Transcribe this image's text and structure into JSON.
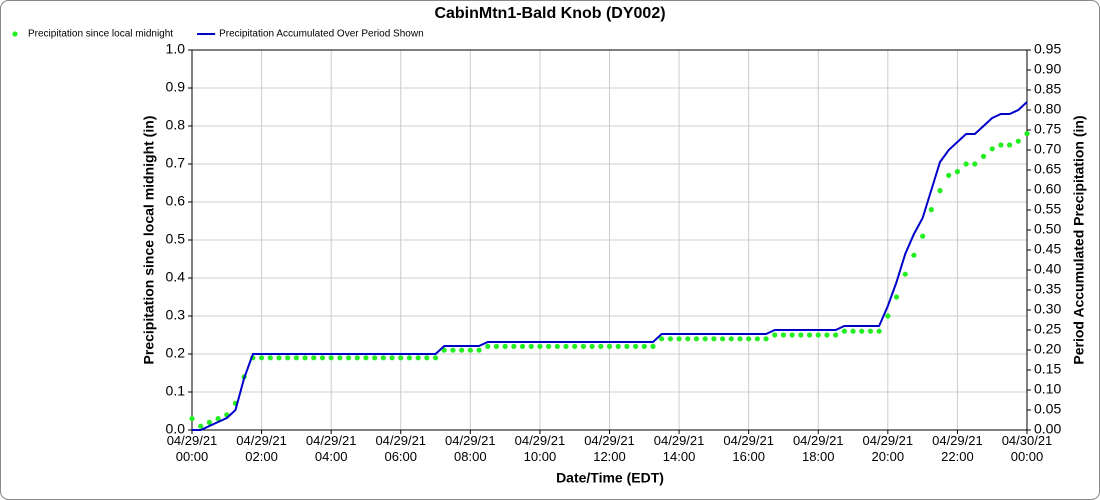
{
  "chart_data": {
    "type": "line",
    "title": "CabinMtn1-Bald Knob (DY002)",
    "xlabel": "Date/Time (EDT)",
    "ylabel": "Precipitation since local midnight (in)",
    "y2label": "Period Accumulated Precipitation (in)",
    "legend": "top-left",
    "grid": true,
    "x": [
      "04/29/21 00:00",
      "04/29/21 00:15",
      "04/29/21 00:30",
      "04/29/21 00:45",
      "04/29/21 01:00",
      "04/29/21 01:15",
      "04/29/21 01:30",
      "04/29/21 01:45",
      "04/29/21 02:00",
      "04/29/21 02:15",
      "04/29/21 02:30",
      "04/29/21 02:45",
      "04/29/21 03:00",
      "04/29/21 03:15",
      "04/29/21 03:30",
      "04/29/21 03:45",
      "04/29/21 04:00",
      "04/29/21 04:15",
      "04/29/21 04:30",
      "04/29/21 04:45",
      "04/29/21 05:00",
      "04/29/21 05:15",
      "04/29/21 05:30",
      "04/29/21 05:45",
      "04/29/21 06:00",
      "04/29/21 06:15",
      "04/29/21 06:30",
      "04/29/21 06:45",
      "04/29/21 07:00",
      "04/29/21 07:15",
      "04/29/21 07:30",
      "04/29/21 07:45",
      "04/29/21 08:00",
      "04/29/21 08:15",
      "04/29/21 08:30",
      "04/29/21 08:45",
      "04/29/21 09:00",
      "04/29/21 09:15",
      "04/29/21 09:30",
      "04/29/21 09:45",
      "04/29/21 10:00",
      "04/29/21 10:15",
      "04/29/21 10:30",
      "04/29/21 10:45",
      "04/29/21 11:00",
      "04/29/21 11:15",
      "04/29/21 11:30",
      "04/29/21 11:45",
      "04/29/21 12:00",
      "04/29/21 12:15",
      "04/29/21 12:30",
      "04/29/21 12:45",
      "04/29/21 13:00",
      "04/29/21 13:15",
      "04/29/21 13:30",
      "04/29/21 13:45",
      "04/29/21 14:00",
      "04/29/21 14:15",
      "04/29/21 14:30",
      "04/29/21 14:45",
      "04/29/21 15:00",
      "04/29/21 15:15",
      "04/29/21 15:30",
      "04/29/21 15:45",
      "04/29/21 16:00",
      "04/29/21 16:15",
      "04/29/21 16:30",
      "04/29/21 16:45",
      "04/29/21 17:00",
      "04/29/21 17:15",
      "04/29/21 17:30",
      "04/29/21 17:45",
      "04/29/21 18:00",
      "04/29/21 18:15",
      "04/29/21 18:30",
      "04/29/21 18:45",
      "04/29/21 19:00",
      "04/29/21 19:15",
      "04/29/21 19:30",
      "04/29/21 19:45",
      "04/29/21 20:00",
      "04/29/21 20:15",
      "04/29/21 20:30",
      "04/29/21 20:45",
      "04/29/21 21:00",
      "04/29/21 21:15",
      "04/29/21 21:30",
      "04/29/21 21:45",
      "04/29/21 22:00",
      "04/29/21 22:15",
      "04/29/21 22:30",
      "04/29/21 22:45",
      "04/29/21 23:00",
      "04/29/21 23:15",
      "04/29/21 23:30",
      "04/29/21 23:45",
      "04/30/21 00:00"
    ],
    "series": [
      {
        "name": "Precipitation since local midnight",
        "color": "#22ee22",
        "marker": "dot",
        "values": [
          0.03,
          0.01,
          0.02,
          0.03,
          0.04,
          0.07,
          0.14,
          0.19,
          0.19,
          0.19,
          0.19,
          0.19,
          0.19,
          0.19,
          0.19,
          0.19,
          0.19,
          0.19,
          0.19,
          0.19,
          0.19,
          0.19,
          0.19,
          0.19,
          0.19,
          0.19,
          0.19,
          0.19,
          0.19,
          0.21,
          0.21,
          0.21,
          0.21,
          0.21,
          0.22,
          0.22,
          0.22,
          0.22,
          0.22,
          0.22,
          0.22,
          0.22,
          0.22,
          0.22,
          0.22,
          0.22,
          0.22,
          0.22,
          0.22,
          0.22,
          0.22,
          0.22,
          0.22,
          0.22,
          0.24,
          0.24,
          0.24,
          0.24,
          0.24,
          0.24,
          0.24,
          0.24,
          0.24,
          0.24,
          0.24,
          0.24,
          0.24,
          0.25,
          0.25,
          0.25,
          0.25,
          0.25,
          0.25,
          0.25,
          0.25,
          0.26,
          0.26,
          0.26,
          0.26,
          0.26,
          0.3,
          0.35,
          0.41,
          0.46,
          0.51,
          0.58,
          0.63,
          0.67,
          0.68,
          0.7,
          0.7,
          0.72,
          0.74,
          0.75,
          0.75,
          0.76,
          0.78
        ]
      },
      {
        "name": "Precipitation Accumulated Over Period Shown",
        "color": "#0000cc",
        "marker": "line",
        "axis": "y2",
        "values": [
          0,
          0,
          0.01,
          0.02,
          0.03,
          0.05,
          0.13,
          0.19,
          0.19,
          0.19,
          0.19,
          0.19,
          0.19,
          0.19,
          0.19,
          0.19,
          0.19,
          0.19,
          0.19,
          0.19,
          0.19,
          0.19,
          0.19,
          0.19,
          0.19,
          0.19,
          0.19,
          0.19,
          0.19,
          0.21,
          0.21,
          0.21,
          0.21,
          0.21,
          0.22,
          0.22,
          0.22,
          0.22,
          0.22,
          0.22,
          0.22,
          0.22,
          0.22,
          0.22,
          0.22,
          0.22,
          0.22,
          0.22,
          0.22,
          0.22,
          0.22,
          0.22,
          0.22,
          0.22,
          0.24,
          0.24,
          0.24,
          0.24,
          0.24,
          0.24,
          0.24,
          0.24,
          0.24,
          0.24,
          0.24,
          0.24,
          0.24,
          0.25,
          0.25,
          0.25,
          0.25,
          0.25,
          0.25,
          0.25,
          0.25,
          0.26,
          0.26,
          0.26,
          0.26,
          0.26,
          0.31,
          0.37,
          0.44,
          0.49,
          0.53,
          0.6,
          0.67,
          0.7,
          0.72,
          0.74,
          0.74,
          0.76,
          0.78,
          0.79,
          0.79,
          0.8,
          0.82
        ]
      }
    ],
    "xlim": [
      "04/29/21 00:00",
      "04/30/21 00:00"
    ],
    "xticks": [
      {
        "value": "04/29/21 00:00",
        "label": [
          "04/29/21",
          "00:00"
        ]
      },
      {
        "value": "04/29/21 02:00",
        "label": [
          "04/29/21",
          "02:00"
        ]
      },
      {
        "value": "04/29/21 04:00",
        "label": [
          "04/29/21",
          "04:00"
        ]
      },
      {
        "value": "04/29/21 06:00",
        "label": [
          "04/29/21",
          "06:00"
        ]
      },
      {
        "value": "04/29/21 08:00",
        "label": [
          "04/29/21",
          "08:00"
        ]
      },
      {
        "value": "04/29/21 10:00",
        "label": [
          "04/29/21",
          "10:00"
        ]
      },
      {
        "value": "04/29/21 12:00",
        "label": [
          "04/29/21",
          "12:00"
        ]
      },
      {
        "value": "04/29/21 14:00",
        "label": [
          "04/29/21",
          "14:00"
        ]
      },
      {
        "value": "04/29/21 16:00",
        "label": [
          "04/29/21",
          "16:00"
        ]
      },
      {
        "value": "04/29/21 18:00",
        "label": [
          "04/29/21",
          "18:00"
        ]
      },
      {
        "value": "04/29/21 20:00",
        "label": [
          "04/29/21",
          "20:00"
        ]
      },
      {
        "value": "04/29/21 22:00",
        "label": [
          "04/29/21",
          "22:00"
        ]
      },
      {
        "value": "04/30/21 00:00",
        "label": [
          "04/30/21",
          "00:00"
        ]
      }
    ],
    "ylim": [
      0,
      1
    ],
    "yticks": [
      {
        "value": 0,
        "label": "0.0"
      },
      0.1,
      0.2,
      0.3,
      0.4,
      0.5,
      0.6,
      0.7,
      0.8,
      0.9,
      {
        "value": 1,
        "label": "1.0"
      }
    ],
    "y2lim": [
      0,
      0.95
    ],
    "y2ticks": [
      {
        "value": 0,
        "label": "0.00"
      },
      0.05,
      {
        "value": 0.1,
        "label": "0.10"
      },
      0.15,
      {
        "value": 0.2,
        "label": "0.20"
      },
      0.25,
      {
        "value": 0.3,
        "label": "0.30"
      },
      0.35,
      {
        "value": 0.4,
        "label": "0.40"
      },
      0.45,
      {
        "value": 0.5,
        "label": "0.50"
      },
      0.55,
      {
        "value": 0.6,
        "label": "0.60"
      },
      0.65,
      {
        "value": 0.7,
        "label": "0.70"
      },
      0.75,
      {
        "value": 0.8,
        "label": "0.80"
      },
      0.85,
      {
        "value": 0.9,
        "label": "0.90"
      },
      0.95
    ]
  }
}
